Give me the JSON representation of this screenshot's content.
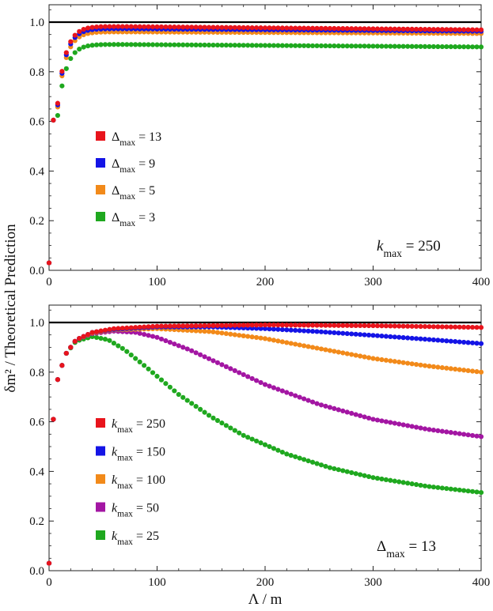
{
  "y_axis_label": "δm² / Theoretical Prediction",
  "x_axis_label": "Λ / m",
  "chart_data": [
    {
      "type": "scatter",
      "annotation": "k_max = 250",
      "annotation_parts": {
        "symbol": "k",
        "sub": "max",
        "rest": " = 250"
      },
      "xlim": [
        0,
        400
      ],
      "ylim": [
        0,
        1.07
      ],
      "x_ticks": [
        "0",
        "100",
        "200",
        "300",
        "400"
      ],
      "y_ticks": [
        "0.0",
        "0.2",
        "0.4",
        "0.6",
        "0.8",
        "1.0"
      ],
      "reference_line": 1.0,
      "legend_position": "left-middle",
      "series": [
        {
          "name": "Δmax = 13",
          "legend": {
            "symbol": "Δ",
            "sub": "max",
            "rest": " = 13"
          },
          "color": "#e8141c",
          "plateau": 0.985,
          "decay": 4e-05
        },
        {
          "name": "Δmax = 9",
          "legend": {
            "symbol": "Δ",
            "sub": "max",
            "rest": " = 9"
          },
          "color": "#1414e6",
          "plateau": 0.975,
          "decay": 3e-05
        },
        {
          "name": "Δmax = 5",
          "legend": {
            "symbol": "Δ",
            "sub": "max",
            "rest": " = 5"
          },
          "color": "#f28a1a",
          "plateau": 0.962,
          "decay": 2e-05
        },
        {
          "name": "Δmax = 3",
          "legend": {
            "symbol": "Δ",
            "sub": "max",
            "rest": " = 3"
          },
          "color": "#1fa81f",
          "plateau": 0.912,
          "decay": 3e-05
        }
      ]
    },
    {
      "type": "scatter",
      "annotation": "Δmax = 13",
      "annotation_parts": {
        "symbol": "Δ",
        "sub": "max",
        "rest": " = 13"
      },
      "xlim": [
        0,
        400
      ],
      "ylim": [
        0,
        1.07
      ],
      "x_ticks": [
        "0",
        "100",
        "200",
        "300",
        "400"
      ],
      "y_ticks": [
        "0.0",
        "0.2",
        "0.4",
        "0.6",
        "0.8",
        "1.0"
      ],
      "reference_line": 1.0,
      "legend_position": "left-bottom",
      "series": [
        {
          "name": "kmax = 250",
          "legend": {
            "symbol": "k",
            "sub": "max",
            "rest": " = 250"
          },
          "color": "#e8141c",
          "samples": [
            [
              0,
              0.03
            ],
            [
              4,
              0.61
            ],
            [
              8,
              0.77
            ],
            [
              15,
              0.87
            ],
            [
              25,
              0.93
            ],
            [
              40,
              0.96
            ],
            [
              60,
              0.975
            ],
            [
              100,
              0.985
            ],
            [
              200,
              0.99
            ],
            [
              300,
              0.987
            ],
            [
              400,
              0.98
            ]
          ]
        },
        {
          "name": "kmax = 150",
          "legend": {
            "symbol": "k",
            "sub": "max",
            "rest": " = 150"
          },
          "color": "#1414e6",
          "samples": [
            [
              0,
              0.03
            ],
            [
              4,
              0.61
            ],
            [
              8,
              0.77
            ],
            [
              15,
              0.87
            ],
            [
              25,
              0.93
            ],
            [
              40,
              0.96
            ],
            [
              60,
              0.972
            ],
            [
              100,
              0.982
            ],
            [
              150,
              0.982
            ],
            [
              200,
              0.975
            ],
            [
              250,
              0.963
            ],
            [
              300,
              0.948
            ],
            [
              350,
              0.932
            ],
            [
              400,
              0.915
            ]
          ]
        },
        {
          "name": "kmax = 100",
          "legend": {
            "symbol": "k",
            "sub": "max",
            "rest": " = 100"
          },
          "color": "#f28a1a",
          "samples": [
            [
              0,
              0.03
            ],
            [
              4,
              0.61
            ],
            [
              8,
              0.77
            ],
            [
              15,
              0.87
            ],
            [
              25,
              0.93
            ],
            [
              40,
              0.958
            ],
            [
              60,
              0.97
            ],
            [
              100,
              0.975
            ],
            [
              150,
              0.963
            ],
            [
              200,
              0.935
            ],
            [
              250,
              0.895
            ],
            [
              300,
              0.855
            ],
            [
              350,
              0.825
            ],
            [
              400,
              0.8
            ]
          ]
        },
        {
          "name": "kmax = 50",
          "legend": {
            "symbol": "k",
            "sub": "max",
            "rest": " = 50"
          },
          "color": "#a316a3",
          "samples": [
            [
              0,
              0.03
            ],
            [
              4,
              0.61
            ],
            [
              8,
              0.77
            ],
            [
              15,
              0.87
            ],
            [
              25,
              0.93
            ],
            [
              40,
              0.955
            ],
            [
              60,
              0.965
            ],
            [
              80,
              0.96
            ],
            [
              100,
              0.94
            ],
            [
              130,
              0.89
            ],
            [
              160,
              0.83
            ],
            [
              200,
              0.75
            ],
            [
              250,
              0.67
            ],
            [
              300,
              0.61
            ],
            [
              350,
              0.57
            ],
            [
              400,
              0.54
            ]
          ]
        },
        {
          "name": "kmax = 25",
          "legend": {
            "symbol": "k",
            "sub": "max",
            "rest": " = 25"
          },
          "color": "#1fa81f",
          "samples": [
            [
              0,
              0.03
            ],
            [
              4,
              0.61
            ],
            [
              8,
              0.77
            ],
            [
              15,
              0.87
            ],
            [
              25,
              0.925
            ],
            [
              40,
              0.943
            ],
            [
              55,
              0.93
            ],
            [
              70,
              0.89
            ],
            [
              90,
              0.82
            ],
            [
              120,
              0.71
            ],
            [
              150,
              0.62
            ],
            [
              180,
              0.545
            ],
            [
              220,
              0.47
            ],
            [
              260,
              0.415
            ],
            [
              300,
              0.375
            ],
            [
              350,
              0.34
            ],
            [
              400,
              0.315
            ]
          ]
        }
      ]
    }
  ]
}
